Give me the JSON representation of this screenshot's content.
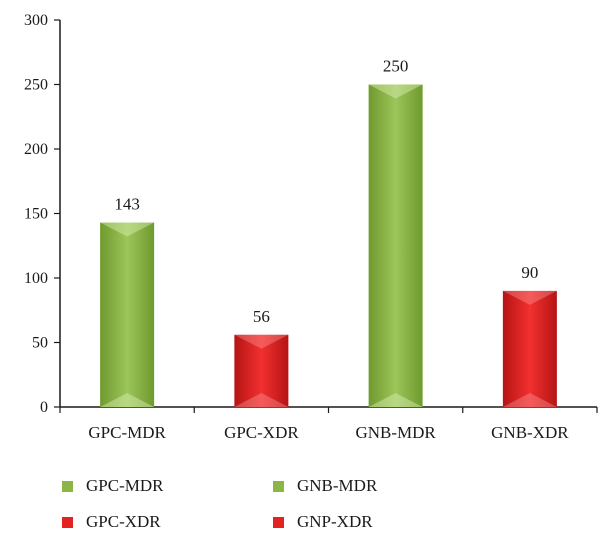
{
  "chart_data": {
    "type": "bar",
    "categories": [
      "GPC-MDR",
      "GPC-XDR",
      "GNB-MDR",
      "GNB-XDR"
    ],
    "values": [
      143,
      56,
      250,
      90
    ],
    "bar_colors": [
      "#8cb547",
      "#e52222",
      "#8cb547",
      "#e52222"
    ],
    "ylim": [
      0,
      300
    ],
    "yticks": [
      0,
      50,
      100,
      150,
      200,
      250,
      300
    ],
    "title": "",
    "xlabel": "",
    "ylabel": "",
    "grid": false,
    "legend_position": "bottom-left",
    "legend": [
      {
        "label": "GPC-MDR",
        "color": "#8cb547"
      },
      {
        "label": "GNB-MDR",
        "color": "#8cb547"
      },
      {
        "label": "GPC-XDR",
        "color": "#e52222"
      },
      {
        "label": "GNP-XDR",
        "color": "#e52222"
      }
    ]
  },
  "colors": {
    "green": "#8cb547",
    "red": "#e52222",
    "axis": "#1a1a1a"
  }
}
